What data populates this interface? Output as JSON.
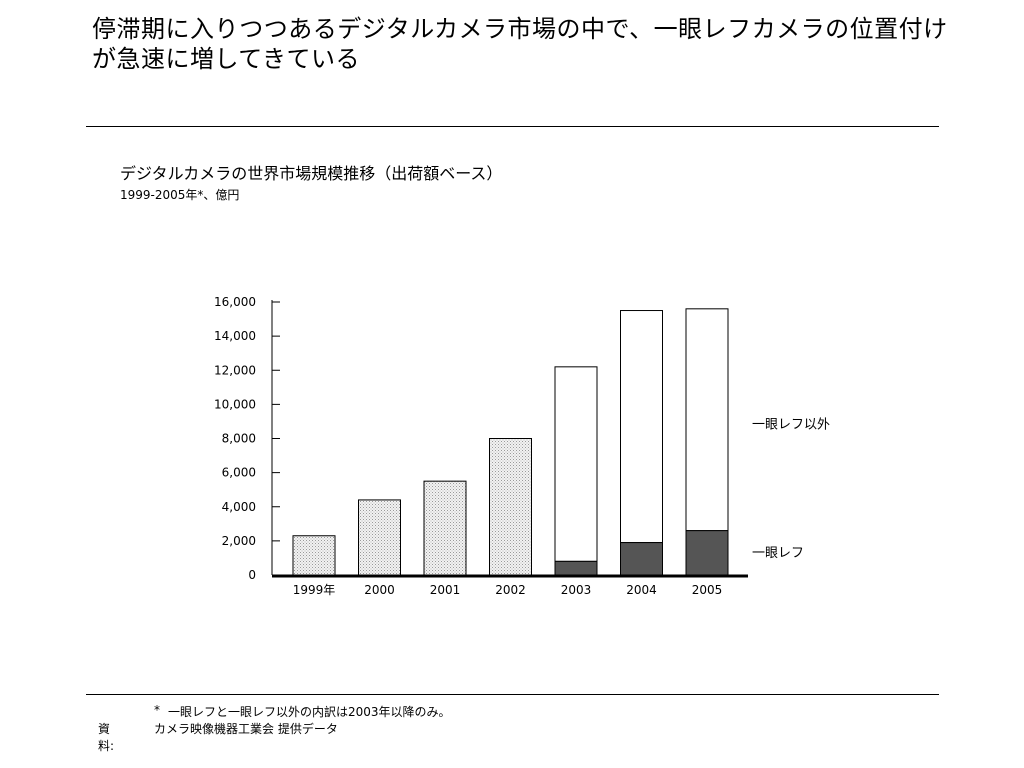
{
  "headline": "停滞期に入りつつあるデジタルカメラ市場の中で、一眼レフカメラの位置付けが急速に増してきている",
  "chart_data": {
    "type": "bar",
    "stacked": true,
    "title": "デジタルカメラの世界市場規模推移（出荷額ベース）",
    "subtitle": "1999-2005年*、億円",
    "categories": [
      "1999年",
      "2000",
      "2001",
      "2002",
      "2003",
      "2004",
      "2005"
    ],
    "y_ticks": [
      "16,000",
      "14,000",
      "12,000",
      "10,000",
      "8,000",
      "6,000",
      "4,000",
      "2,000",
      "0"
    ],
    "ylim": [
      0,
      16000
    ],
    "series": [
      {
        "name": "一眼レフ",
        "values": [
          null,
          null,
          null,
          null,
          800,
          1900,
          2600
        ],
        "color": "#555555"
      },
      {
        "name": "一眼レフ以外",
        "values": [
          null,
          null,
          null,
          null,
          11400,
          13600,
          13000
        ],
        "color": "#ffffff"
      }
    ],
    "totals_only": {
      "note_values": [
        2300,
        4400,
        5500,
        8000
      ],
      "color": "#e8e8e8"
    },
    "grid": false
  },
  "footnotes": {
    "mark": "*",
    "text": "一眼レフと一眼レフ以外の内訳は2003年以降のみ。",
    "source_label": "資料:",
    "source_text": "カメラ映像機器工業会 提供データ"
  }
}
